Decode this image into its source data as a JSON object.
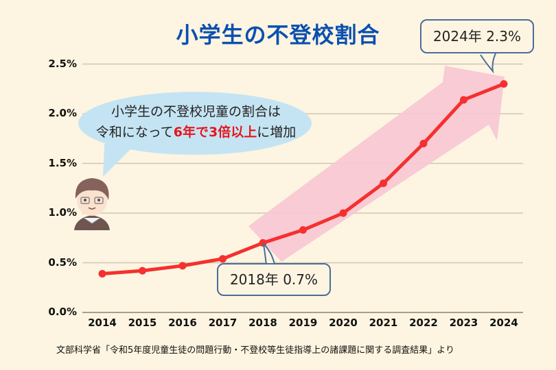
{
  "title": "小学生の不登校割合",
  "bubble": {
    "line1": "小学生の不登校児童の割合は",
    "line2_pre": "令和になって",
    "line2_highlight": "6年で3倍以上",
    "line2_post": "に増加"
  },
  "callouts": {
    "end": "2024年 2.3%",
    "mid": "2018年 0.7%"
  },
  "source": "文部科学省「令和5年度児童生徒の問題行動・不登校等生徒指導上の諸課題に関する調査結果」より",
  "colors": {
    "background": "#fdf5e1",
    "title": "#0b4fb0",
    "line": "#f5302e",
    "arrow": "#f7c6d4",
    "bubble": "#c5e4f3",
    "highlight": "#e8141b",
    "callout_border": "#4a6c9a"
  },
  "chart_data": {
    "type": "line",
    "title": "小学生の不登校割合",
    "xlabel": "",
    "ylabel": "",
    "categories": [
      "2014",
      "2015",
      "2016",
      "2017",
      "2018",
      "2019",
      "2020",
      "2021",
      "2022",
      "2023",
      "2024"
    ],
    "series": [
      {
        "name": "小学生の不登校割合",
        "values": [
          0.39,
          0.42,
          0.47,
          0.54,
          0.7,
          0.83,
          1.0,
          1.3,
          1.7,
          2.14,
          2.3
        ]
      }
    ],
    "yticks": [
      "0.0%",
      "0.5%",
      "1.0%",
      "1.5%",
      "2.0%",
      "2.5%"
    ],
    "ylim": [
      0,
      2.5
    ],
    "grid": true,
    "legend": "none",
    "annotations": [
      "2024年 2.3%",
      "2018年 0.7%",
      "小学生の不登校児童の割合は令和になって6年で3倍以上に増加"
    ]
  }
}
